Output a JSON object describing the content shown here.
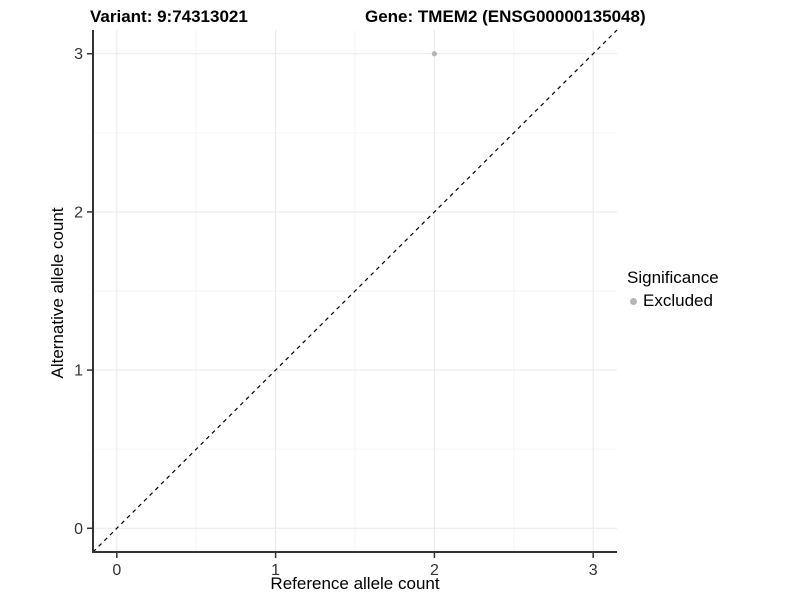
{
  "chart_data": {
    "type": "scatter",
    "title_left": "Variant: 9:74313021",
    "title_right": "Gene: TMEM2 (ENSG00000135048)",
    "xlabel": "Reference allele count",
    "ylabel": "Alternative allele count",
    "xlim": [
      -0.15,
      3.15
    ],
    "ylim": [
      -0.15,
      3.15
    ],
    "xticks": [
      0,
      1,
      2,
      3
    ],
    "yticks": [
      0,
      1,
      2,
      3
    ],
    "minor_ticks": [
      0.5,
      1.5,
      2.5
    ],
    "grid": "major+minor",
    "identity_line": {
      "slope": 1,
      "intercept": 0,
      "style": "dashed",
      "color": "#000000"
    },
    "series": [
      {
        "name": "Excluded",
        "color": "#b5b5b5",
        "points": [
          {
            "x": 2,
            "y": 3
          }
        ]
      }
    ],
    "legend": {
      "title": "Significance",
      "position": "right",
      "entries": [
        {
          "label": "Excluded",
          "color": "#b5b5b5",
          "marker": "circle"
        }
      ]
    },
    "colors": {
      "background": "#ffffff",
      "grid_major": "#ebebeb",
      "grid_minor": "#f5f5f5",
      "axis": "#333333",
      "tick_label": "#333333",
      "title": "#000000"
    }
  }
}
